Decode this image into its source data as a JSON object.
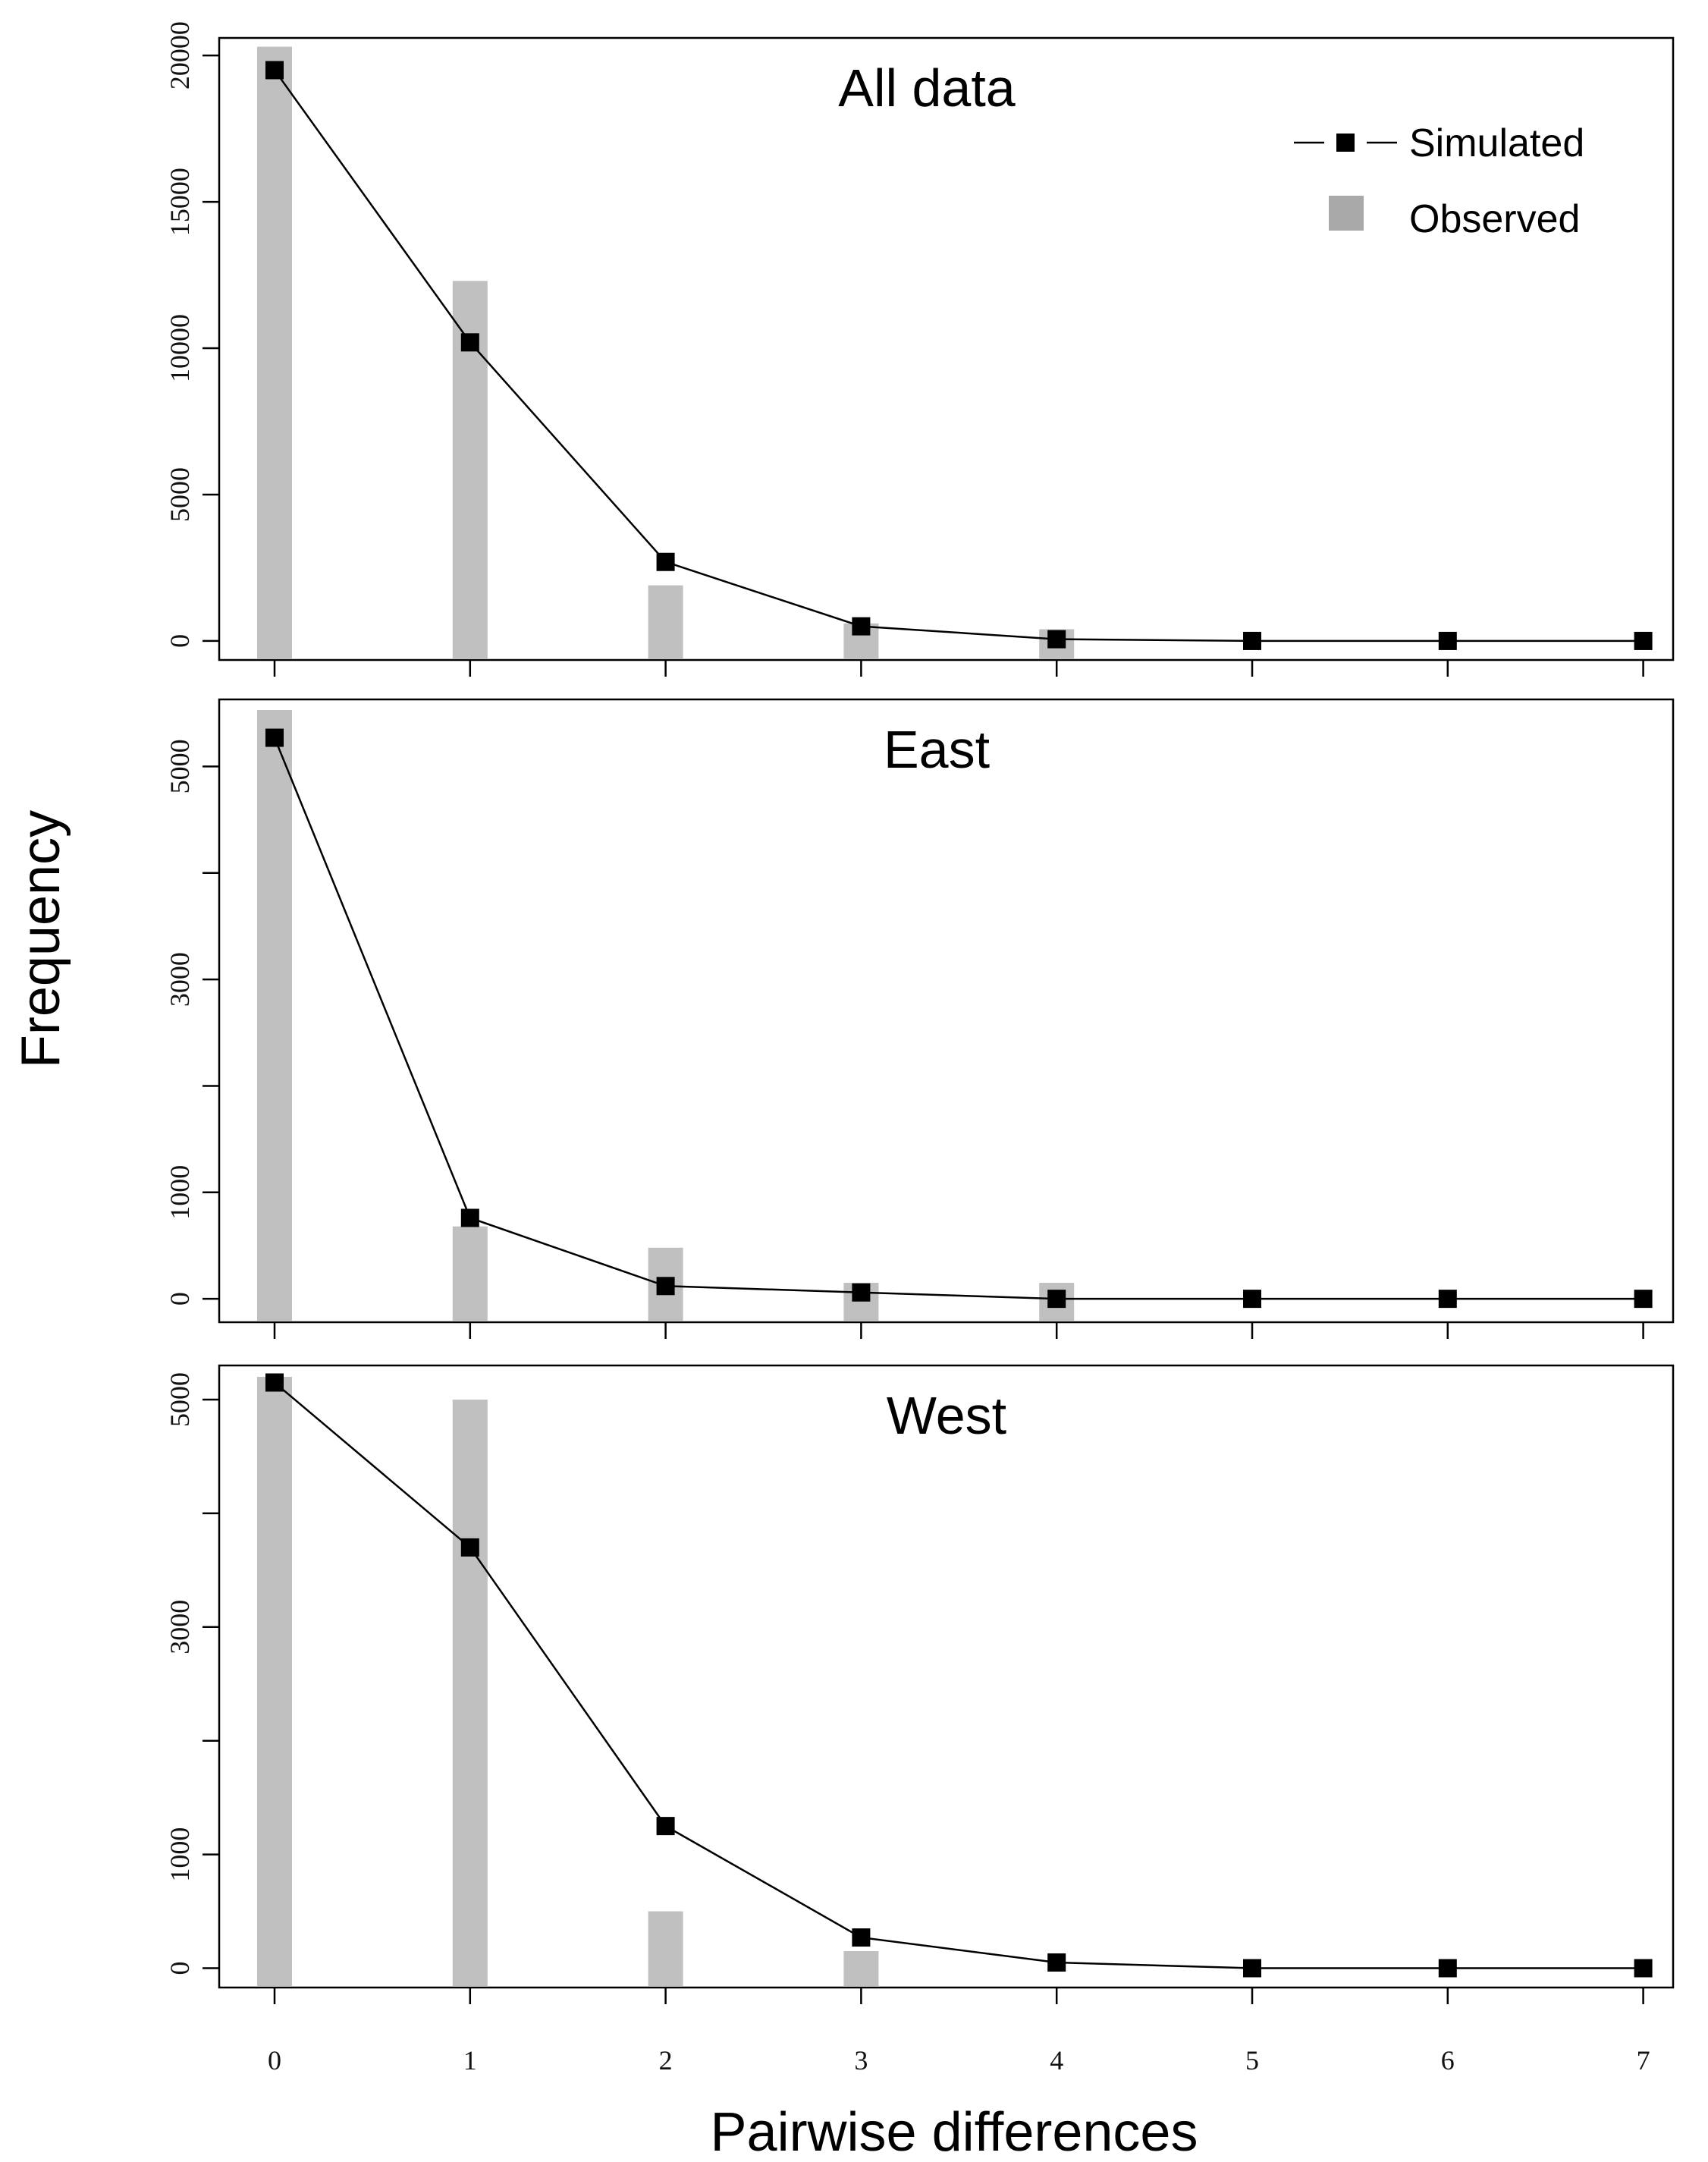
{
  "colors": {
    "observed": "#c0c0c0",
    "simulated": "#000000",
    "legend_observed": "#a9a9a9"
  },
  "labels": {
    "xlabel": "Pairwise differences",
    "ylabel": "Frequency"
  },
  "legend": {
    "position": "top-right of first panel",
    "simulated": "Simulated",
    "observed": "Observed"
  },
  "chart_data": [
    {
      "type": "bar",
      "title": "All data",
      "categories": [
        0,
        1,
        2,
        3,
        4,
        5,
        6,
        7
      ],
      "ylim": [
        -650,
        20600
      ],
      "yticks": [
        0,
        5000,
        10000,
        15000,
        20000
      ],
      "yticklabels": [
        "0",
        "5000",
        "10000",
        "15000",
        "20000"
      ],
      "xticklabels": [
        "0",
        "1",
        "2",
        "3",
        "4",
        "5",
        "6",
        "7"
      ],
      "series": [
        {
          "name": "Observed",
          "style": "bar",
          "values": [
            20300,
            12300,
            1900,
            600,
            400,
            0,
            0,
            0
          ]
        },
        {
          "name": "Simulated",
          "style": "line+square",
          "values": [
            19500,
            10200,
            2700,
            500,
            60,
            0,
            0,
            0
          ]
        }
      ]
    },
    {
      "type": "bar",
      "title": "East",
      "categories": [
        0,
        1,
        2,
        3,
        4,
        5,
        6,
        7
      ],
      "ylim": [
        -220,
        5630
      ],
      "yticks": [
        0,
        1000,
        2000,
        3000,
        4000,
        5000
      ],
      "yticklabels": [
        "0",
        "1000",
        "",
        "3000",
        "",
        "5000"
      ],
      "xticklabels": [
        "0",
        "1",
        "2",
        "3",
        "4",
        "5",
        "6",
        "7"
      ],
      "series": [
        {
          "name": "Observed",
          "style": "bar",
          "values": [
            5530,
            680,
            480,
            150,
            150,
            0,
            0,
            0
          ]
        },
        {
          "name": "Simulated",
          "style": "line+square",
          "values": [
            5270,
            760,
            120,
            60,
            0,
            0,
            0,
            0
          ]
        }
      ]
    },
    {
      "type": "bar",
      "title": "West",
      "categories": [
        0,
        1,
        2,
        3,
        4,
        5,
        6,
        7
      ],
      "ylim": [
        -170,
        5300
      ],
      "yticks": [
        0,
        1000,
        2000,
        3000,
        4000,
        5000
      ],
      "yticklabels": [
        "0",
        "1000",
        "",
        "3000",
        "",
        "5000"
      ],
      "xticklabels": [
        "0",
        "1",
        "2",
        "3",
        "4",
        "5",
        "6",
        "7"
      ],
      "series": [
        {
          "name": "Observed",
          "style": "bar",
          "values": [
            5200,
            5000,
            500,
            150,
            0,
            0,
            0,
            0
          ]
        },
        {
          "name": "Simulated",
          "style": "line+square",
          "values": [
            5150,
            3700,
            1250,
            270,
            50,
            0,
            0,
            0
          ]
        }
      ]
    }
  ]
}
